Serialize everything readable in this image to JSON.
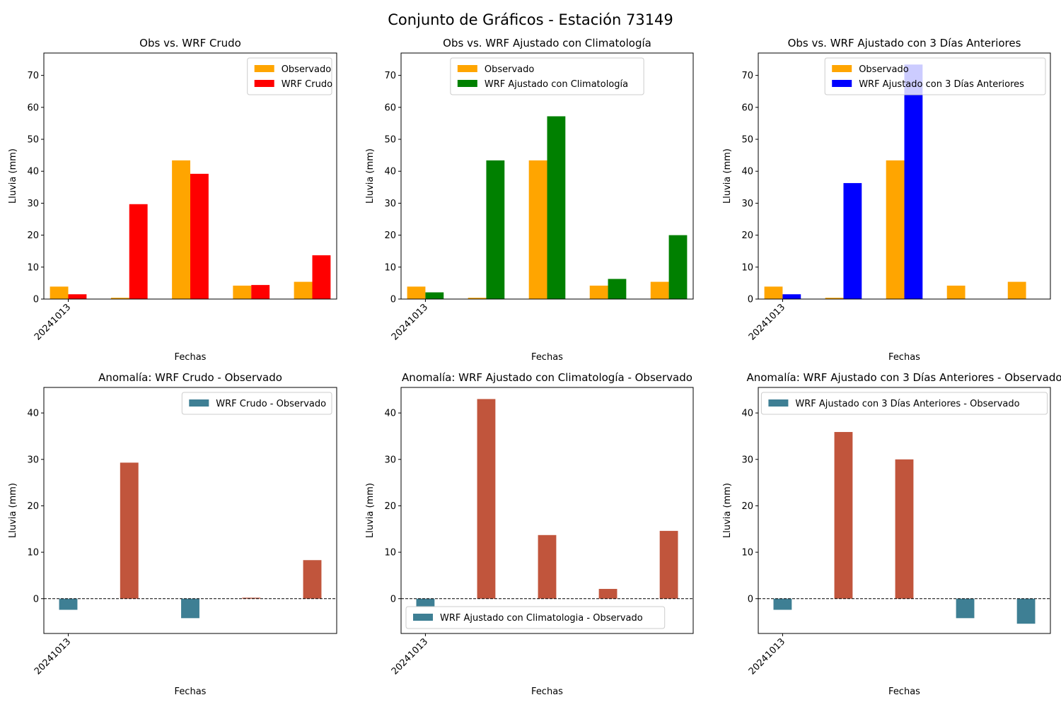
{
  "figure": {
    "title": "Conjunto de Gráficos - Estación 73149"
  },
  "chart_data": [
    {
      "type": "bar",
      "title": "Obs vs. WRF Crudo",
      "xlabel": "Fechas",
      "ylabel": "Lluvia (mm)",
      "ylim": [
        0,
        77
      ],
      "yticks": [
        0,
        10,
        20,
        30,
        40,
        50,
        60,
        70
      ],
      "xtick_labels": [
        "20241013"
      ],
      "legend_position": "upper right",
      "series": [
        {
          "name": "Observado",
          "color": "#FFA500",
          "values": [
            3.9,
            0.4,
            43.4,
            4.2,
            5.4
          ]
        },
        {
          "name": "WRF Crudo",
          "color": "#FF0000",
          "values": [
            1.5,
            29.7,
            39.2,
            4.4,
            13.7
          ]
        }
      ]
    },
    {
      "type": "bar",
      "title": "Obs vs. WRF Ajustado con Climatología",
      "xlabel": "Fechas",
      "ylabel": "Lluvia (mm)",
      "ylim": [
        0,
        77
      ],
      "yticks": [
        0,
        10,
        20,
        30,
        40,
        50,
        60,
        70
      ],
      "xtick_labels": [
        "20241013"
      ],
      "legend_position": "upper center",
      "series": [
        {
          "name": "Observado",
          "color": "#FFA500",
          "values": [
            3.9,
            0.4,
            43.4,
            4.2,
            5.4
          ]
        },
        {
          "name": "WRF Ajustado con Climatología",
          "color": "#008000",
          "values": [
            2.1,
            43.4,
            57.2,
            6.3,
            20.0
          ]
        }
      ]
    },
    {
      "type": "bar",
      "title": "Obs vs. WRF Ajustado con 3 Días Anteriores",
      "xlabel": "Fechas",
      "ylabel": "Lluvia (mm)",
      "ylim": [
        0,
        77
      ],
      "yticks": [
        0,
        10,
        20,
        30,
        40,
        50,
        60,
        70
      ],
      "xtick_labels": [
        "20241013"
      ],
      "legend_position": "upper right",
      "series": [
        {
          "name": "Observado",
          "color": "#FFA500",
          "values": [
            3.9,
            0.4,
            43.4,
            4.2,
            5.4
          ]
        },
        {
          "name": "WRF Ajustado con 3 Días Anteriores",
          "color": "#0000FF",
          "values": [
            1.5,
            36.3,
            73.4,
            0,
            0
          ]
        }
      ]
    },
    {
      "type": "bar",
      "title": "Anomalía: WRF Crudo - Observado",
      "xlabel": "Fechas",
      "ylabel": "Lluvia (mm)",
      "ylim": [
        -7.5,
        45.5
      ],
      "yticks": [
        0,
        10,
        20,
        30,
        40
      ],
      "xtick_labels": [
        "20241013"
      ],
      "legend_position": "upper right",
      "positive_color": "#C1553C",
      "negative_color": "#3E7F94",
      "series": [
        {
          "name": "WRF Crudo - Observado",
          "color": "#3E7F94",
          "values": [
            -2.4,
            29.3,
            -4.2,
            0.2,
            8.3
          ]
        }
      ]
    },
    {
      "type": "bar",
      "title": "Anomalía: WRF Ajustado con Climatología - Observado",
      "xlabel": "Fechas",
      "ylabel": "Lluvia (mm)",
      "ylim": [
        -7.5,
        45.5
      ],
      "yticks": [
        0,
        10,
        20,
        30,
        40
      ],
      "xtick_labels": [
        "20241013"
      ],
      "legend_position": "lower left",
      "positive_color": "#C1553C",
      "negative_color": "#3E7F94",
      "series": [
        {
          "name": "WRF Ajustado con Climatologia - Observado",
          "color": "#3E7F94",
          "values": [
            -1.8,
            43.0,
            13.7,
            2.1,
            14.6
          ]
        }
      ]
    },
    {
      "type": "bar",
      "title": "Anomalía: WRF Ajustado con 3 Días Anteriores - Observado",
      "xlabel": "Fechas",
      "ylabel": "Lluvia (mm)",
      "ylim": [
        -7.5,
        45.5
      ],
      "yticks": [
        0,
        10,
        20,
        30,
        40
      ],
      "xtick_labels": [
        "20241013"
      ],
      "legend_position": "upper center",
      "positive_color": "#C1553C",
      "negative_color": "#3E7F94",
      "series": [
        {
          "name": "WRF Ajustado con 3 Días Anteriores - Observado",
          "color": "#3E7F94",
          "values": [
            -2.4,
            35.9,
            30.0,
            -4.2,
            -5.4
          ]
        }
      ]
    }
  ]
}
